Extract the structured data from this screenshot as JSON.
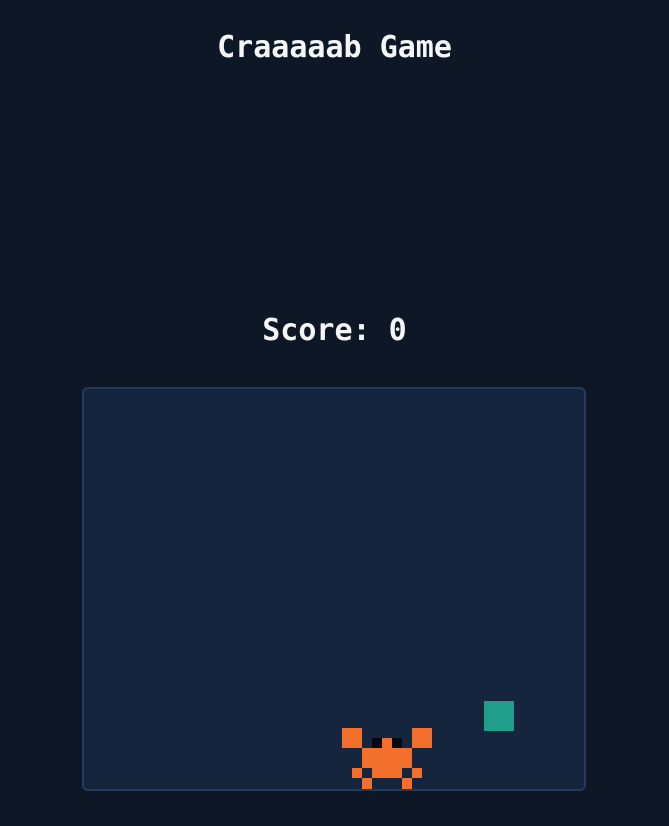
{
  "game": {
    "title": "Craaaaab Game",
    "score_text": "Score: 0",
    "score": 0
  },
  "colors": {
    "background": "#0e1726",
    "board": "#14253d",
    "board_border": "#233a5c",
    "text": "#f4f6f8",
    "crab": "#f26f2c",
    "crab_eyes": "#060a10",
    "food": "#1e9e8b"
  },
  "sprites": {
    "player": "crab",
    "item": "food-block"
  }
}
